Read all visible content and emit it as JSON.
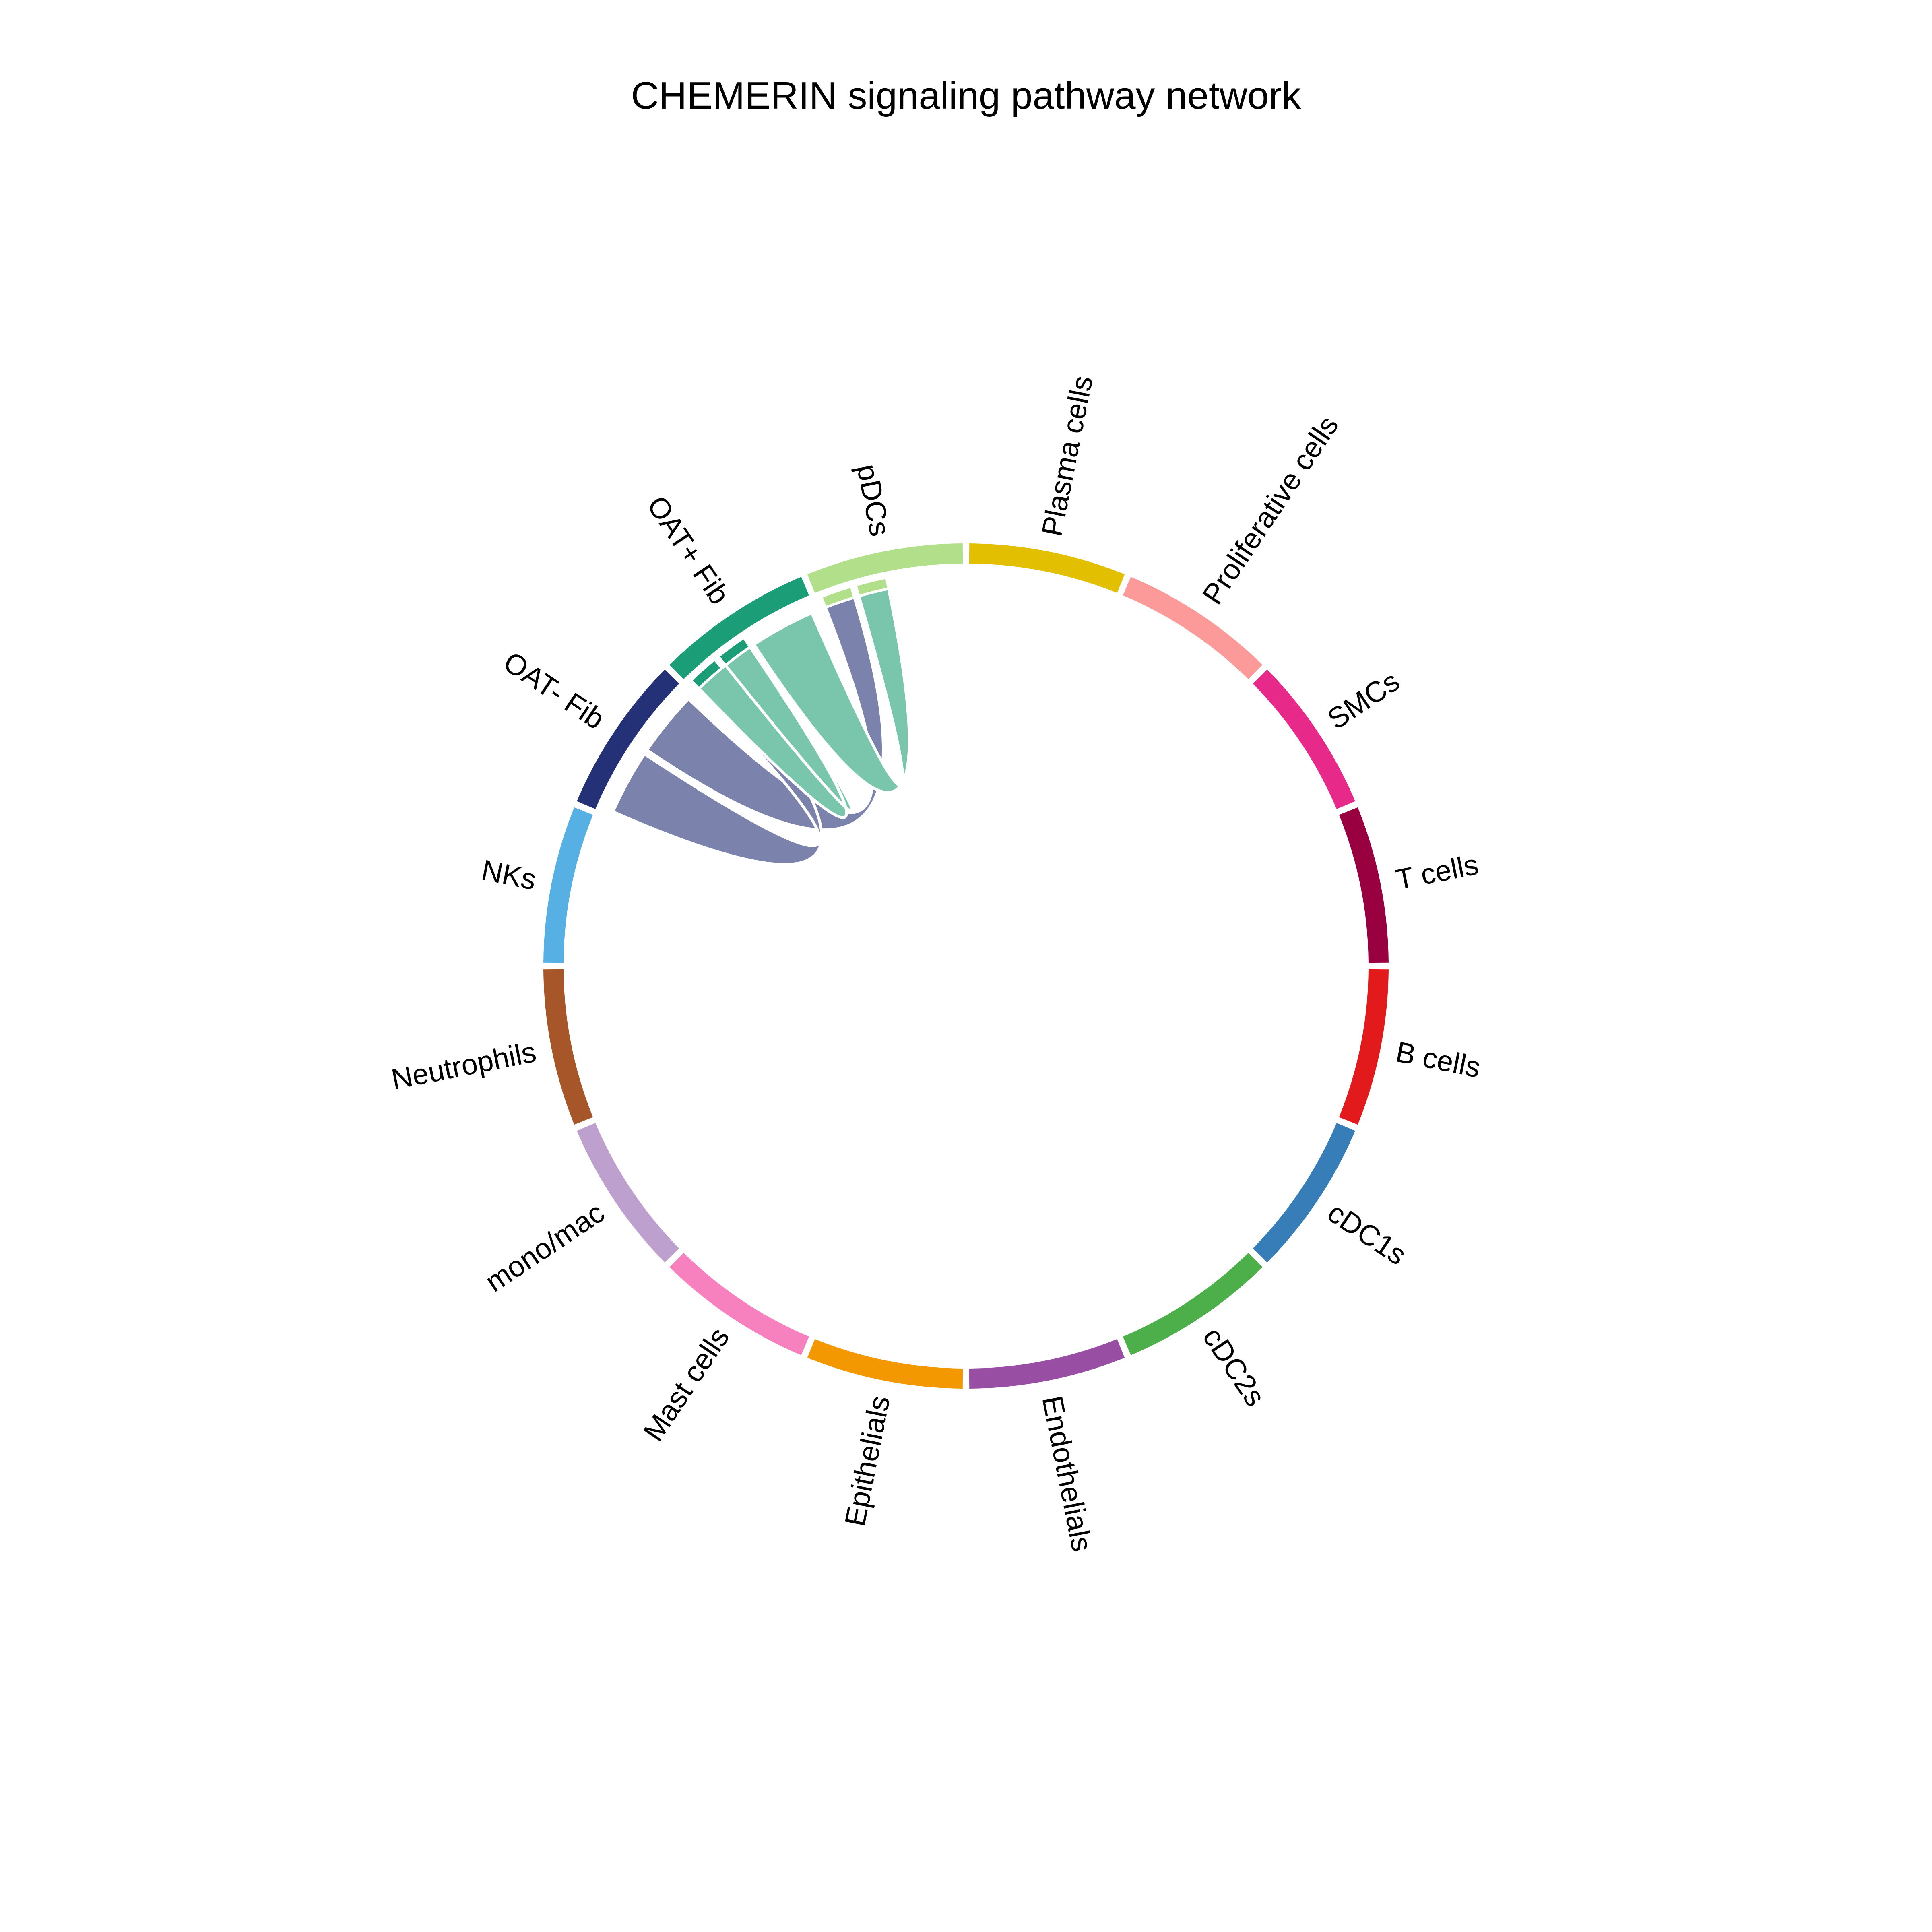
{
  "title": "CHEMERIN signaling pathway network",
  "chart_data": {
    "type": "chord",
    "title": "CHEMERIN signaling pathway network",
    "sectors": [
      {
        "name": "Plasma cells",
        "color": "#E2BF00"
      },
      {
        "name": "Proliferative cells",
        "color": "#FB9A99"
      },
      {
        "name": "SMCs",
        "color": "#E7298A"
      },
      {
        "name": "T cells",
        "color": "#990040"
      },
      {
        "name": "B cells",
        "color": "#E31A1C"
      },
      {
        "name": "cDC1s",
        "color": "#377EB8"
      },
      {
        "name": "cDC2s",
        "color": "#4DAF4A"
      },
      {
        "name": "Endothelials",
        "color": "#984EA3"
      },
      {
        "name": "Epithelials",
        "color": "#F39800"
      },
      {
        "name": "Mast cells",
        "color": "#F781BF"
      },
      {
        "name": "mono/mac",
        "color": "#BEA0CF"
      },
      {
        "name": "Neutrophils",
        "color": "#A65628"
      },
      {
        "name": "NKs",
        "color": "#56B0E4"
      },
      {
        "name": "OAT- Fib",
        "color": "#253176"
      },
      {
        "name": "OAT+ Fib",
        "color": "#1B9E77"
      },
      {
        "name": "pDCs",
        "color": "#B2DF8A"
      }
    ],
    "links": [
      {
        "source": "OAT- Fib",
        "target": "pDCs",
        "color": "#7B82AC"
      },
      {
        "source": "OAT- Fib",
        "target": "OAT+ Fib",
        "color": "#7B82AC"
      },
      {
        "source": "OAT+ Fib",
        "target": "pDCs",
        "color": "#79C6AD"
      },
      {
        "source": "OAT+ Fib",
        "target": "OAT+ Fib",
        "color": "#79C6AD"
      }
    ],
    "legend": "none",
    "grid": false
  }
}
